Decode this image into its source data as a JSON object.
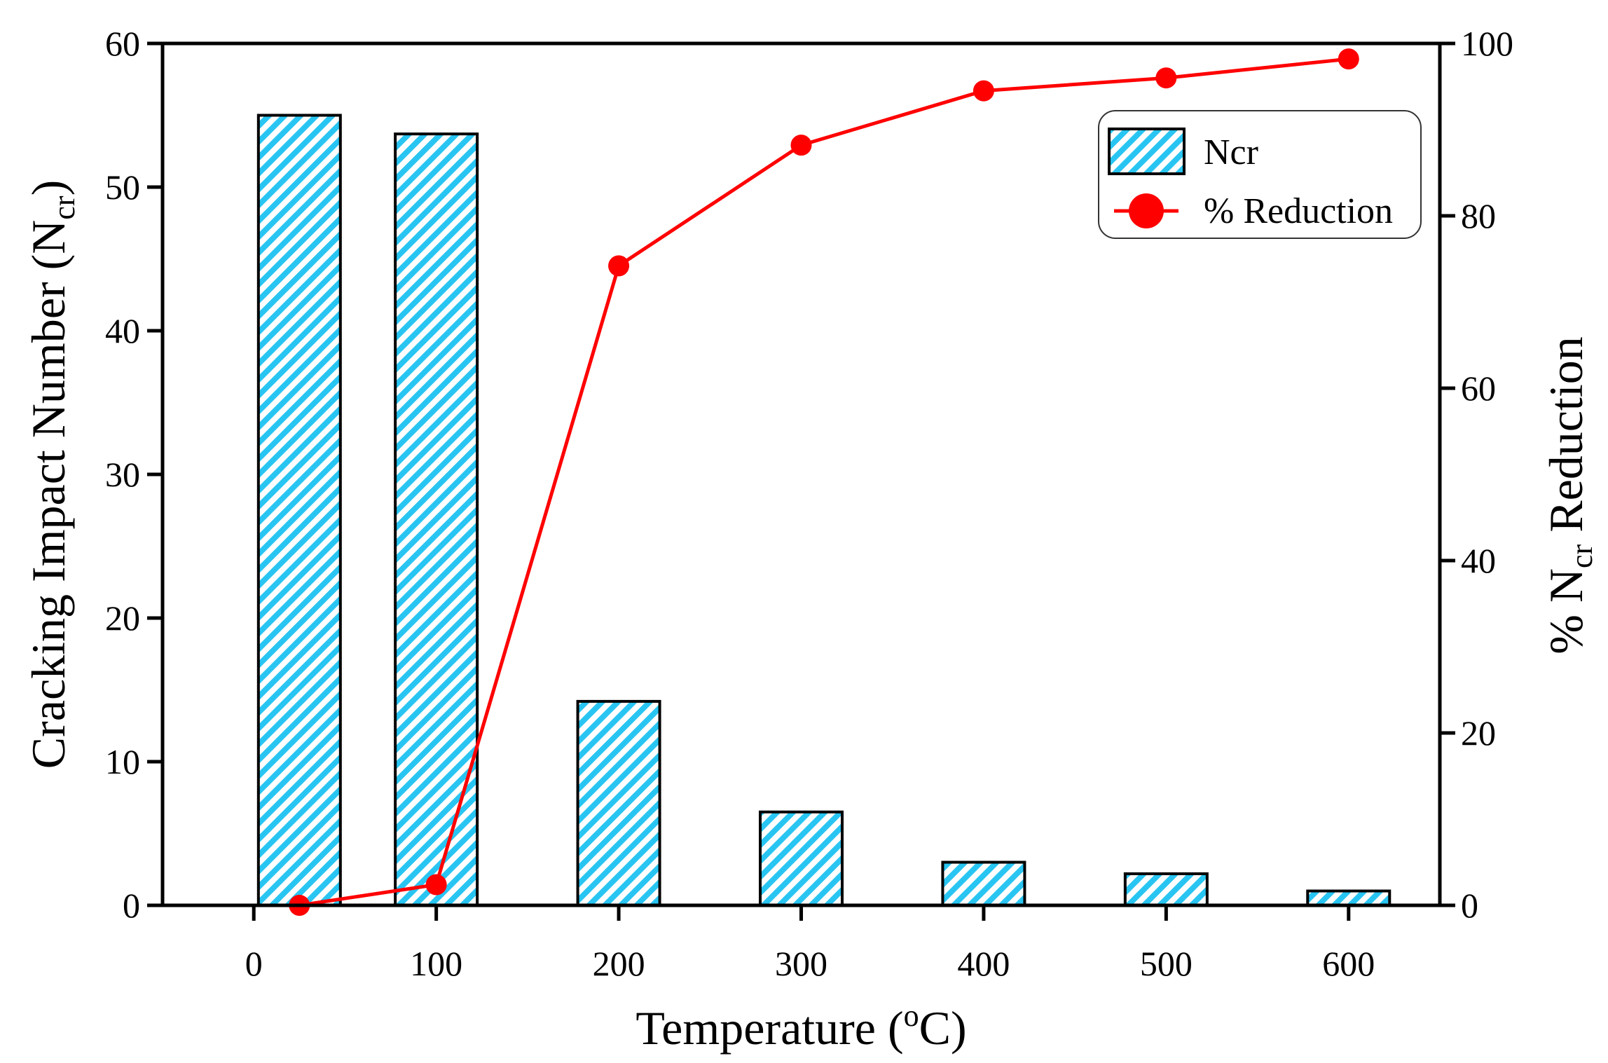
{
  "chart_data": {
    "type": "bar",
    "x_categories": [
      "0",
      "100",
      "200",
      "300",
      "400",
      "500",
      "600"
    ],
    "x_positions": [
      0,
      100,
      200,
      300,
      400,
      500,
      600
    ],
    "xlim": [
      -50,
      650
    ],
    "xlabel": {
      "text": "Temperature (",
      "sup": "o",
      "after": "C)"
    },
    "series": [
      {
        "name": "Ncr",
        "type": "bar",
        "axis": "left",
        "x": [
          25,
          100,
          200,
          300,
          400,
          500,
          600
        ],
        "values": [
          55.0,
          53.7,
          14.2,
          6.5,
          3.0,
          2.2,
          1.0
        ],
        "color": "#29c5f2"
      },
      {
        "name": "% Reduction",
        "type": "line",
        "axis": "right",
        "x": [
          25,
          100,
          200,
          300,
          400,
          500,
          600
        ],
        "values": [
          0,
          2.4,
          74.2,
          88.2,
          94.5,
          96.0,
          98.2
        ],
        "color": "#ff0000"
      }
    ],
    "y_left": {
      "label": {
        "text": "Cracking Impact Number (N",
        "sub": "cr",
        "after": ")"
      },
      "ylim": [
        0,
        60
      ],
      "ticks": [
        0,
        10,
        20,
        30,
        40,
        50,
        60
      ]
    },
    "y_right": {
      "label": {
        "text": "% N",
        "sub": "cr",
        "after": " Reduction"
      },
      "ylim": [
        0,
        100
      ],
      "ticks": [
        0,
        20,
        40,
        60,
        80,
        100
      ]
    },
    "legend": {
      "position": "top-right",
      "entries": [
        "Ncr",
        "% Reduction"
      ]
    }
  }
}
